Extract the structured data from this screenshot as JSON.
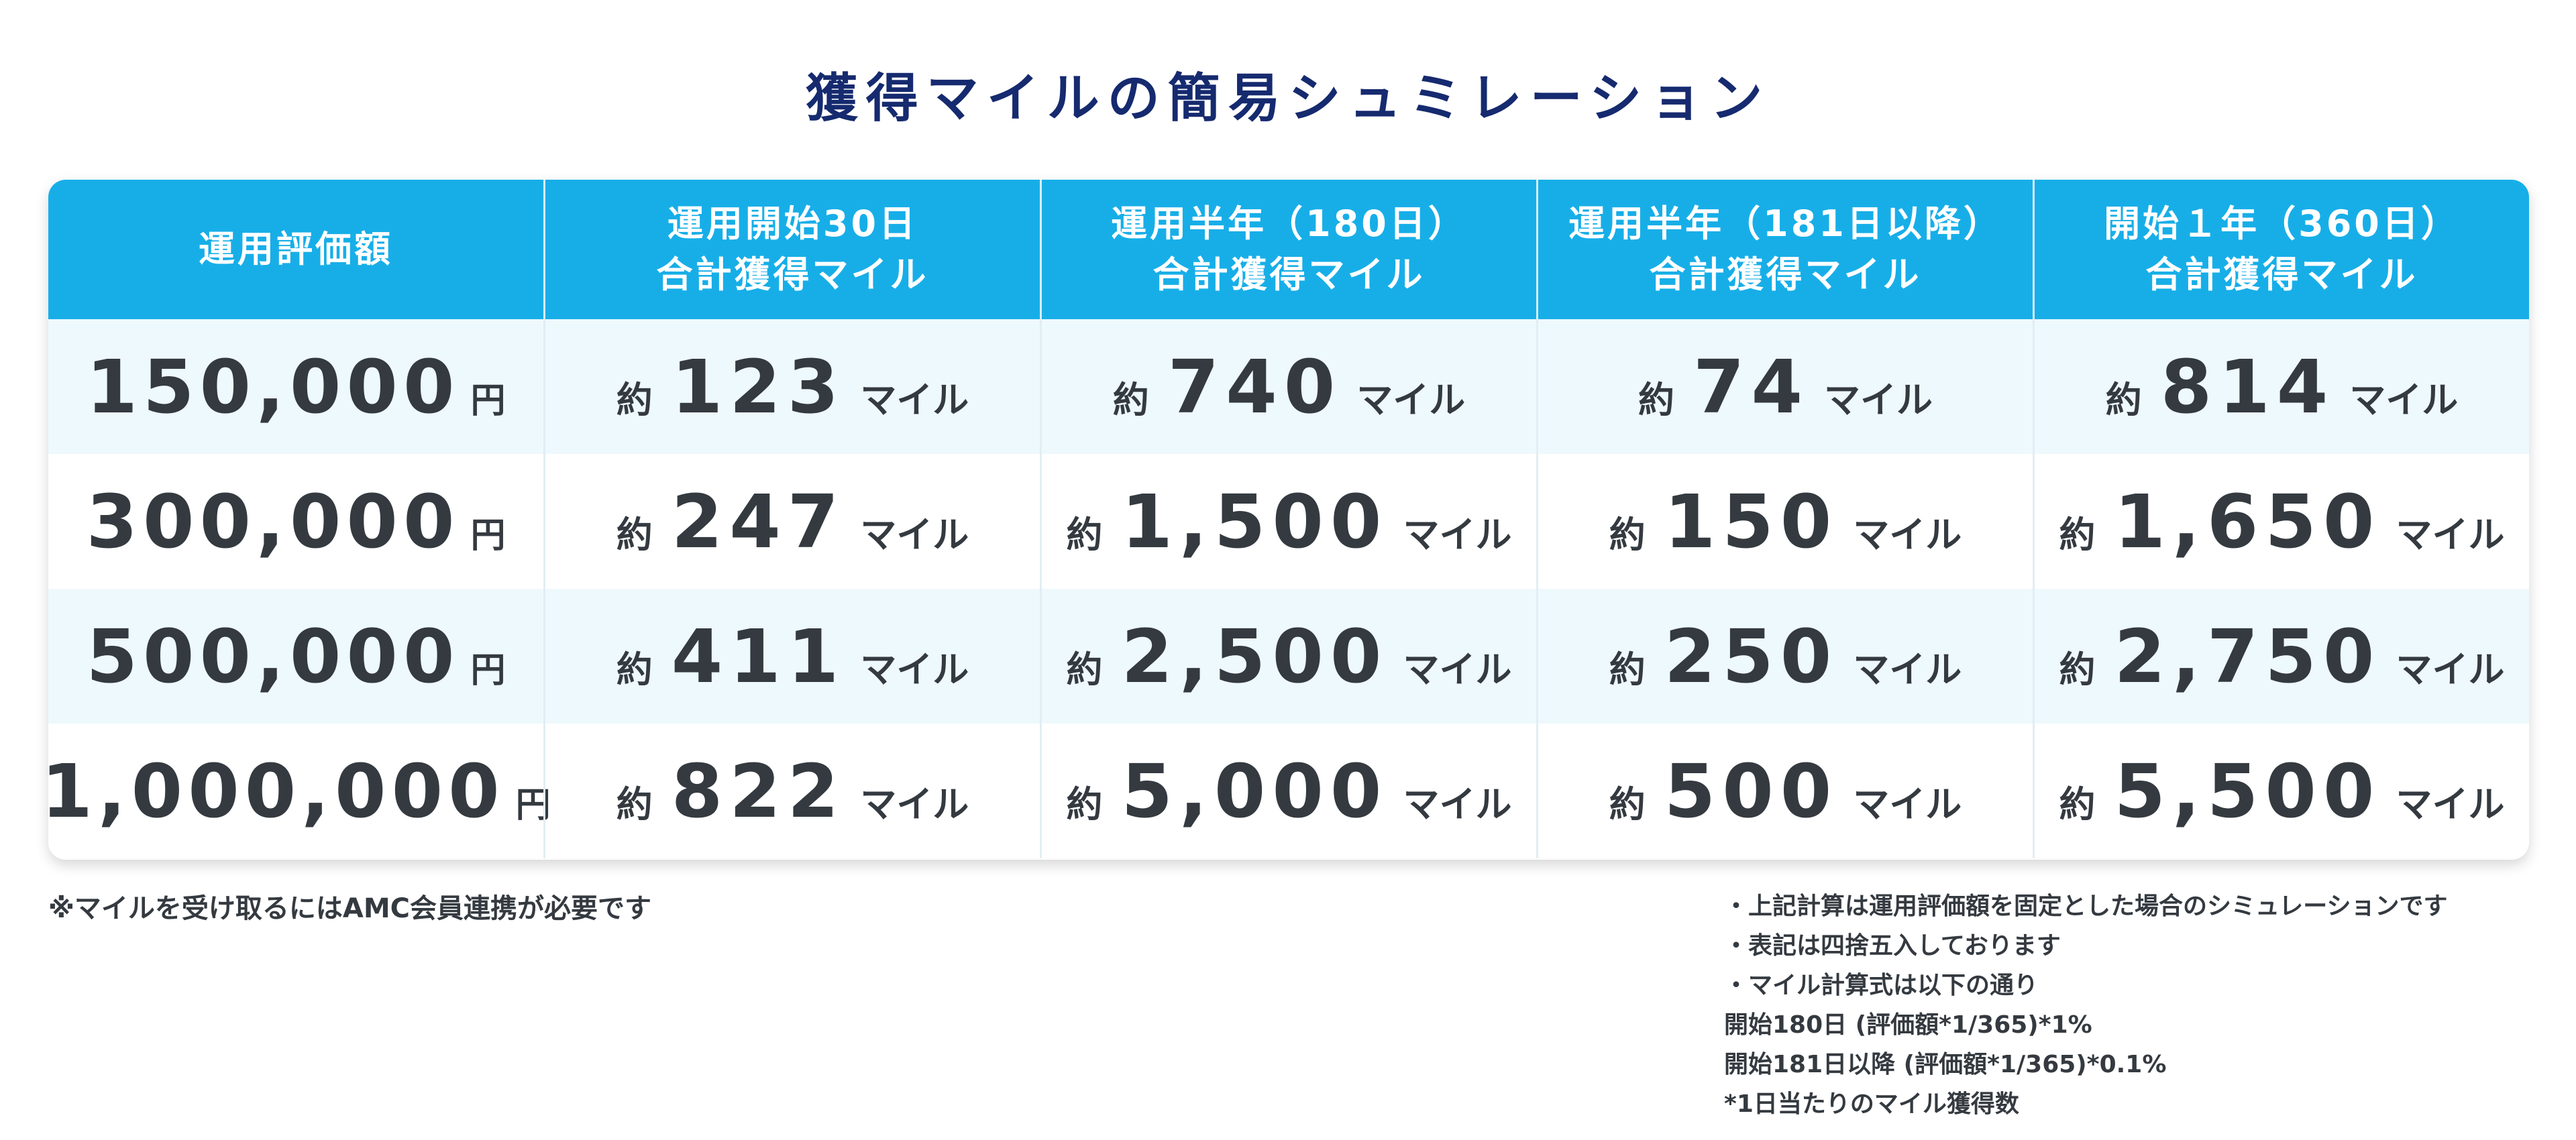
{
  "title": "獲得マイルの簡易シュミレーション",
  "table": {
    "headers": [
      [
        "運用評価額"
      ],
      [
        "運用開始30日",
        "合計獲得マイル"
      ],
      [
        "運用半年（180日）",
        "合計獲得マイル"
      ],
      [
        "運用半年（181日以降）",
        "合計獲得マイル"
      ],
      [
        "開始１年（360日）",
        "合計獲得マイル"
      ]
    ],
    "prefix": "約",
    "mile_suffix": "マイル",
    "yen_suffix": "円",
    "rows": [
      {
        "amount": "150,000",
        "miles": [
          "123",
          "740",
          "74",
          "814"
        ]
      },
      {
        "amount": "300,000",
        "miles": [
          "247",
          "1,500",
          "150",
          "1,650"
        ]
      },
      {
        "amount": "500,000",
        "miles": [
          "411",
          "2,500",
          "250",
          "2,750"
        ]
      },
      {
        "amount": "1,000,000",
        "miles": [
          "822",
          "5,000",
          "500",
          "5,500"
        ]
      }
    ]
  },
  "note_left": "※マイルを受け取るにはAMC会員連携が必要です",
  "notes_right": [
    "・上記計算は運用評価額を固定とした場合のシミュレーションです",
    "・表記は四捨五入しております",
    "・マイル計算式は以下の通り",
    "開始180日 (評価額*1/365)*1%",
    "開始181日以降 (評価額*1/365)*0.1%",
    "*1日当たりのマイル獲得数"
  ],
  "colors": {
    "title": "#162a6f",
    "header_bg": "#17aee8",
    "row_shade": "#eef9fd",
    "text": "#343a40"
  }
}
